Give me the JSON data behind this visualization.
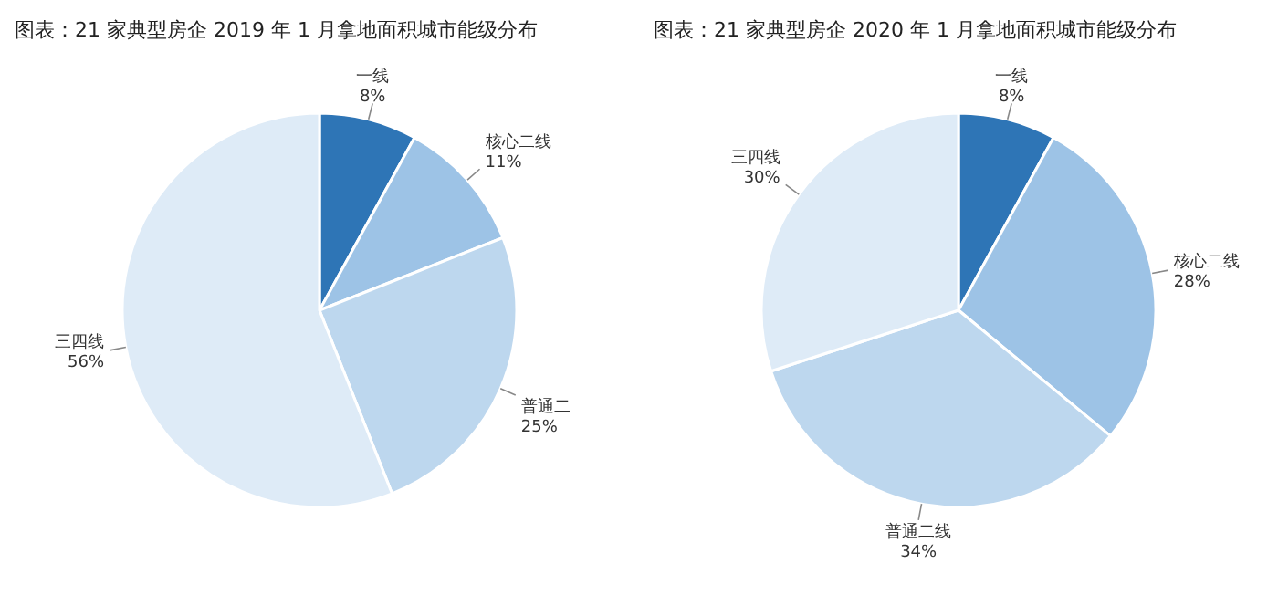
{
  "chart_data": [
    {
      "type": "pie",
      "title": "图表：21 家典型房企 2019 年 1 月拿地面积城市能级分布",
      "categories": [
        "一线",
        "核心二线",
        "普通二",
        "三四线"
      ],
      "values": [
        8,
        11,
        25,
        56
      ],
      "value_labels": [
        "8%",
        "11%",
        "25%",
        "56%"
      ],
      "colors": [
        "#2e75b6",
        "#9dc3e6",
        "#bdd7ee",
        "#deebf7"
      ]
    },
    {
      "type": "pie",
      "title": "图表：21 家典型房企 2020 年 1 月拿地面积城市能级分布",
      "categories": [
        "一线",
        "核心二线",
        "普通二线",
        "三四线"
      ],
      "values": [
        8,
        28,
        34,
        30
      ],
      "value_labels": [
        "8%",
        "28%",
        "34%",
        "30%"
      ],
      "colors": [
        "#2e75b6",
        "#9dc3e6",
        "#bdd7ee",
        "#deebf7"
      ]
    }
  ]
}
